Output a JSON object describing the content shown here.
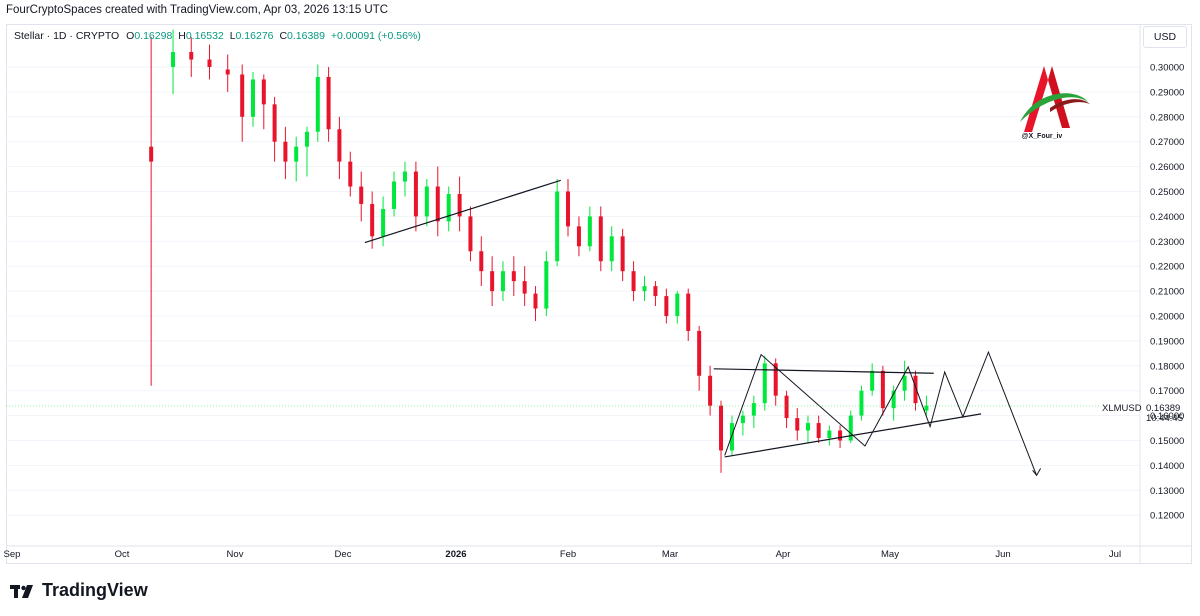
{
  "header": {
    "credit": "FourCryptoSpaces created with TradingView.com, Apr 03, 2026 13:15 UTC"
  },
  "legend": {
    "symbol": "Stellar · 1D · CRYPTO",
    "open_label": "O",
    "open_value": "0.16298",
    "high_label": "H",
    "high_value": "0.16532",
    "low_label": "L",
    "low_value": "0.16276",
    "close_label": "C",
    "close_value": "0.16389",
    "change": "+0.00091 (+0.56%)"
  },
  "currency": "USD",
  "price_tag": {
    "symbol": "XLMUSD",
    "price": "0.16389",
    "countdown": "10:44:45"
  },
  "watermark": {
    "handle": "@X_Four_iv"
  },
  "brand": {
    "name": "TradingView"
  },
  "colors": {
    "up": "#00e83c",
    "down": "#e8142c",
    "drawing": "#131722",
    "grid": "#f0f3fa"
  },
  "chart_data": {
    "type": "candlestick",
    "x_ticks": [
      "Sep",
      "Oct",
      "Nov",
      "Dec",
      "2026",
      "Feb",
      "Mar",
      "Apr",
      "May",
      "Jun",
      "Jul"
    ],
    "y_ticks": [
      "0.30000",
      "0.29000",
      "0.28000",
      "0.27000",
      "0.26000",
      "0.25000",
      "0.24000",
      "0.23000",
      "0.22000",
      "0.21000",
      "0.20000",
      "0.19000",
      "0.18000",
      "0.17000",
      "0.16000",
      "0.15000",
      "0.14000",
      "0.13000",
      "0.12000"
    ],
    "y_axis": "right",
    "ylim": [
      0.11,
      0.31
    ],
    "last_close": 0.16389,
    "series": [
      {
        "date": "2025-10-09",
        "open": 0.268,
        "high": 0.312,
        "low": 0.172,
        "close": 0.262
      },
      {
        "date": "2025-10-15",
        "open": 0.3,
        "high": 0.315,
        "low": 0.289,
        "close": 0.306
      },
      {
        "date": "2025-10-20",
        "open": 0.306,
        "high": 0.312,
        "low": 0.296,
        "close": 0.303
      },
      {
        "date": "2025-10-25",
        "open": 0.303,
        "high": 0.309,
        "low": 0.295,
        "close": 0.3
      },
      {
        "date": "2025-10-30",
        "open": 0.299,
        "high": 0.305,
        "low": 0.29,
        "close": 0.297
      },
      {
        "date": "2025-11-03",
        "open": 0.297,
        "high": 0.301,
        "low": 0.27,
        "close": 0.28
      },
      {
        "date": "2025-11-06",
        "open": 0.28,
        "high": 0.298,
        "low": 0.276,
        "close": 0.295
      },
      {
        "date": "2025-11-09",
        "open": 0.295,
        "high": 0.297,
        "low": 0.275,
        "close": 0.285
      },
      {
        "date": "2025-11-12",
        "open": 0.285,
        "high": 0.288,
        "low": 0.262,
        "close": 0.27
      },
      {
        "date": "2025-11-15",
        "open": 0.27,
        "high": 0.276,
        "low": 0.255,
        "close": 0.262
      },
      {
        "date": "2025-11-18",
        "open": 0.262,
        "high": 0.272,
        "low": 0.254,
        "close": 0.268
      },
      {
        "date": "2025-11-21",
        "open": 0.268,
        "high": 0.276,
        "low": 0.256,
        "close": 0.274
      },
      {
        "date": "2025-11-24",
        "open": 0.274,
        "high": 0.301,
        "low": 0.27,
        "close": 0.296
      },
      {
        "date": "2025-11-27",
        "open": 0.296,
        "high": 0.3,
        "low": 0.27,
        "close": 0.275
      },
      {
        "date": "2025-11-30",
        "open": 0.275,
        "high": 0.28,
        "low": 0.255,
        "close": 0.262
      },
      {
        "date": "2025-12-03",
        "open": 0.262,
        "high": 0.266,
        "low": 0.248,
        "close": 0.252
      },
      {
        "date": "2025-12-06",
        "open": 0.252,
        "high": 0.258,
        "low": 0.238,
        "close": 0.245
      },
      {
        "date": "2025-12-09",
        "open": 0.245,
        "high": 0.25,
        "low": 0.227,
        "close": 0.232
      },
      {
        "date": "2025-12-12",
        "open": 0.232,
        "high": 0.248,
        "low": 0.228,
        "close": 0.243
      },
      {
        "date": "2025-12-15",
        "open": 0.243,
        "high": 0.258,
        "low": 0.24,
        "close": 0.254
      },
      {
        "date": "2025-12-18",
        "open": 0.254,
        "high": 0.262,
        "low": 0.248,
        "close": 0.258
      },
      {
        "date": "2025-12-21",
        "open": 0.258,
        "high": 0.262,
        "low": 0.234,
        "close": 0.24
      },
      {
        "date": "2025-12-24",
        "open": 0.24,
        "high": 0.255,
        "low": 0.236,
        "close": 0.252
      },
      {
        "date": "2025-12-27",
        "open": 0.252,
        "high": 0.26,
        "low": 0.232,
        "close": 0.238
      },
      {
        "date": "2025-12-30",
        "open": 0.238,
        "high": 0.252,
        "low": 0.234,
        "close": 0.249
      },
      {
        "date": "2026-01-02",
        "open": 0.249,
        "high": 0.256,
        "low": 0.234,
        "close": 0.24
      },
      {
        "date": "2026-01-05",
        "open": 0.24,
        "high": 0.244,
        "low": 0.222,
        "close": 0.226
      },
      {
        "date": "2026-01-08",
        "open": 0.226,
        "high": 0.232,
        "low": 0.212,
        "close": 0.218
      },
      {
        "date": "2026-01-11",
        "open": 0.218,
        "high": 0.224,
        "low": 0.204,
        "close": 0.21
      },
      {
        "date": "2026-01-14",
        "open": 0.21,
        "high": 0.222,
        "low": 0.206,
        "close": 0.218
      },
      {
        "date": "2026-01-17",
        "open": 0.218,
        "high": 0.224,
        "low": 0.208,
        "close": 0.214
      },
      {
        "date": "2026-01-20",
        "open": 0.214,
        "high": 0.22,
        "low": 0.204,
        "close": 0.209
      },
      {
        "date": "2026-01-23",
        "open": 0.209,
        "high": 0.212,
        "low": 0.198,
        "close": 0.203
      },
      {
        "date": "2026-01-26",
        "open": 0.203,
        "high": 0.226,
        "low": 0.2,
        "close": 0.222
      },
      {
        "date": "2026-01-29",
        "open": 0.222,
        "high": 0.255,
        "low": 0.22,
        "close": 0.25
      },
      {
        "date": "2026-02-01",
        "open": 0.25,
        "high": 0.255,
        "low": 0.232,
        "close": 0.236
      },
      {
        "date": "2026-02-04",
        "open": 0.236,
        "high": 0.24,
        "low": 0.224,
        "close": 0.228
      },
      {
        "date": "2026-02-07",
        "open": 0.228,
        "high": 0.244,
        "low": 0.226,
        "close": 0.24
      },
      {
        "date": "2026-02-10",
        "open": 0.24,
        "high": 0.244,
        "low": 0.218,
        "close": 0.222
      },
      {
        "date": "2026-02-13",
        "open": 0.222,
        "high": 0.236,
        "low": 0.218,
        "close": 0.232
      },
      {
        "date": "2026-02-16",
        "open": 0.232,
        "high": 0.235,
        "low": 0.214,
        "close": 0.218
      },
      {
        "date": "2026-02-19",
        "open": 0.218,
        "high": 0.222,
        "low": 0.206,
        "close": 0.21
      },
      {
        "date": "2026-02-22",
        "open": 0.21,
        "high": 0.216,
        "low": 0.206,
        "close": 0.212
      },
      {
        "date": "2026-02-25",
        "open": 0.212,
        "high": 0.214,
        "low": 0.204,
        "close": 0.208
      },
      {
        "date": "2026-02-28",
        "open": 0.208,
        "high": 0.211,
        "low": 0.197,
        "close": 0.2
      },
      {
        "date": "2026-03-03",
        "open": 0.2,
        "high": 0.21,
        "low": 0.197,
        "close": 0.209
      },
      {
        "date": "2026-03-06",
        "open": 0.209,
        "high": 0.211,
        "low": 0.19,
        "close": 0.194
      },
      {
        "date": "2026-03-09",
        "open": 0.194,
        "high": 0.196,
        "low": 0.17,
        "close": 0.176
      },
      {
        "date": "2026-03-12",
        "open": 0.176,
        "high": 0.18,
        "low": 0.16,
        "close": 0.164
      },
      {
        "date": "2026-03-15",
        "open": 0.164,
        "high": 0.166,
        "low": 0.137,
        "close": 0.146
      },
      {
        "date": "2026-03-18",
        "open": 0.146,
        "high": 0.16,
        "low": 0.144,
        "close": 0.157
      },
      {
        "date": "2026-03-21",
        "open": 0.157,
        "high": 0.162,
        "low": 0.152,
        "close": 0.16
      },
      {
        "date": "2026-03-24",
        "open": 0.16,
        "high": 0.168,
        "low": 0.155,
        "close": 0.165
      },
      {
        "date": "2026-03-27",
        "open": 0.165,
        "high": 0.184,
        "low": 0.162,
        "close": 0.181
      },
      {
        "date": "2026-03-30",
        "open": 0.181,
        "high": 0.183,
        "low": 0.164,
        "close": 0.168
      },
      {
        "date": "2026-04-02",
        "open": 0.168,
        "high": 0.17,
        "low": 0.155,
        "close": 0.159
      },
      {
        "date": "2026-04-05",
        "open": 0.159,
        "high": 0.163,
        "low": 0.15,
        "close": 0.154
      },
      {
        "date": "2026-04-08",
        "open": 0.154,
        "high": 0.16,
        "low": 0.149,
        "close": 0.157
      },
      {
        "date": "2026-04-11",
        "open": 0.157,
        "high": 0.16,
        "low": 0.149,
        "close": 0.151
      },
      {
        "date": "2026-04-14",
        "open": 0.151,
        "high": 0.156,
        "low": 0.148,
        "close": 0.154
      },
      {
        "date": "2026-04-17",
        "open": 0.154,
        "high": 0.156,
        "low": 0.147,
        "close": 0.15
      },
      {
        "date": "2026-04-20",
        "open": 0.15,
        "high": 0.162,
        "low": 0.149,
        "close": 0.16
      },
      {
        "date": "2026-04-23",
        "open": 0.16,
        "high": 0.172,
        "low": 0.158,
        "close": 0.17
      },
      {
        "date": "2026-04-26",
        "open": 0.17,
        "high": 0.181,
        "low": 0.168,
        "close": 0.178
      },
      {
        "date": "2026-04-29",
        "open": 0.178,
        "high": 0.18,
        "low": 0.16,
        "close": 0.163
      },
      {
        "date": "2026-05-02",
        "open": 0.163,
        "high": 0.172,
        "low": 0.158,
        "close": 0.17
      },
      {
        "date": "2026-05-05",
        "open": 0.17,
        "high": 0.182,
        "low": 0.166,
        "close": 0.176
      },
      {
        "date": "2026-05-08",
        "open": 0.176,
        "high": 0.178,
        "low": 0.162,
        "close": 0.165
      },
      {
        "date": "2026-05-11",
        "open": 0.162,
        "high": 0.168,
        "low": 0.16,
        "close": 0.164
      }
    ],
    "drawings": [
      {
        "kind": "trendline",
        "from": {
          "date": "2025-12-07",
          "price": 0.2295
        },
        "to": {
          "date": "2026-01-30",
          "price": 0.2545
        }
      },
      {
        "kind": "trendline",
        "from": {
          "date": "2026-03-13",
          "price": 0.1788
        },
        "to": {
          "date": "2026-05-13",
          "price": 0.177
        }
      },
      {
        "kind": "trendline",
        "from": {
          "date": "2026-03-16",
          "price": 0.1434
        },
        "to": {
          "date": "2026-05-26",
          "price": 0.1607
        }
      },
      {
        "kind": "zigzag",
        "points": [
          {
            "date": "2026-03-16",
            "price": 0.144
          },
          {
            "date": "2026-03-26",
            "price": 0.1845
          },
          {
            "date": "2026-04-24",
            "price": 0.1478
          },
          {
            "date": "2026-05-06",
            "price": 0.1795
          },
          {
            "date": "2026-05-12",
            "price": 0.1556
          },
          {
            "date": "2026-05-16",
            "price": 0.1775
          },
          {
            "date": "2026-05-21",
            "price": 0.1595
          },
          {
            "date": "2026-05-28",
            "price": 0.1855
          },
          {
            "date": "2026-06-10",
            "price": 0.136
          }
        ]
      }
    ]
  }
}
